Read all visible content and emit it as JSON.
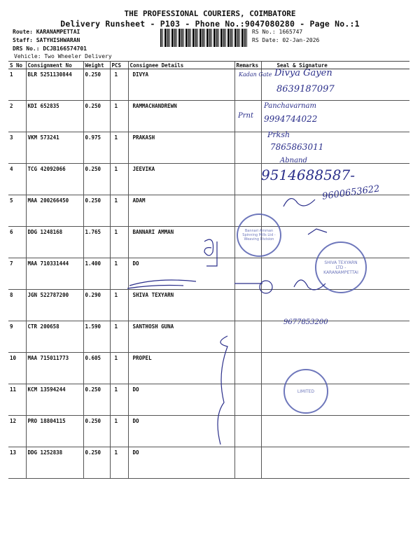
{
  "header": {
    "company": "THE PROFESSIONAL COURIERS, COIMBATORE",
    "subtitle": "Delivery Runsheet - P103 - Phone No.:9047080280 - Page No.:1",
    "route": "Route: KARANAMPETTAI",
    "staff": "Staff: SATYHISHWARAN",
    "drs_no": "DRS No.: DCJB166574701",
    "vehicle": "Vehicle: Two Wheeler Delivery",
    "rs_no": "RS No.: 1665747",
    "rs_date": "RS Date: 02-Jan-2026"
  },
  "table": {
    "columns": [
      "S No",
      "Consignment No",
      "Weight",
      "PCS",
      "Consignee Details",
      "Remarks",
      "Seal & Signature"
    ],
    "rows": [
      {
        "sno": "1",
        "cn": "BLR 5251130844",
        "weight": "0.250",
        "pcs": "1",
        "consignee": "DIVYA"
      },
      {
        "sno": "2",
        "cn": "KDI 652835",
        "weight": "0.250",
        "pcs": "1",
        "consignee": "RAMMACHANDREWN"
      },
      {
        "sno": "3",
        "cn": "VKM 573241",
        "weight": "0.975",
        "pcs": "1",
        "consignee": "PRAKASH"
      },
      {
        "sno": "4",
        "cn": "TCG 42092066",
        "weight": "0.250",
        "pcs": "1",
        "consignee": "JEEVIKA"
      },
      {
        "sno": "5",
        "cn": "MAA 200266450",
        "weight": "0.250",
        "pcs": "1",
        "consignee": "ADAM"
      },
      {
        "sno": "6",
        "cn": "DDG 1248168",
        "weight": "1.765",
        "pcs": "1",
        "consignee": "BANNARI AMMAN"
      },
      {
        "sno": "7",
        "cn": "MAA 710331444",
        "weight": "1.400",
        "pcs": "1",
        "consignee": "DO"
      },
      {
        "sno": "8",
        "cn": "JGN 522787200",
        "weight": "0.290",
        "pcs": "1",
        "consignee": "SHIVA TEXYARN"
      },
      {
        "sno": "9",
        "cn": "CTR 200658",
        "weight": "1.590",
        "pcs": "1",
        "consignee": "SANTHOSH GUNA"
      },
      {
        "sno": "10",
        "cn": "MAA 715011773",
        "weight": "0.605",
        "pcs": "1",
        "consignee": "PROPEL"
      },
      {
        "sno": "11",
        "cn": "KCM 13594244",
        "weight": "0.250",
        "pcs": "1",
        "consignee": "DO"
      },
      {
        "sno": "12",
        "cn": "PRO 18804115",
        "weight": "0.250",
        "pcs": "1",
        "consignee": "DO"
      },
      {
        "sno": "13",
        "cn": "DDG 1252838",
        "weight": "0.250",
        "pcs": "1",
        "consignee": "DO"
      }
    ]
  },
  "handwriting": {
    "r1_remark": "Kadan Gate",
    "r1_sig": "Divya Gayen",
    "r1_phone": "8639187097",
    "r2_remark": "Prnt",
    "r2_sig": "Panchavarnam",
    "r2_phone": "9994744022",
    "r3_sig": "Prksh",
    "r3_phone": "7865863011",
    "r4_sig": "Abnand",
    "r4_phone": "9514688587-",
    "r5_phone": "9600653622",
    "r9_phone": "9677853200"
  },
  "stamps": {
    "bannari": "Bannari Amman Spinning Mills Ltd - Weaving Division",
    "shiva": "SHIVA TEXYARN LTD - KARANAMPETTAI",
    "propel": "LIMITED"
  },
  "colors": {
    "ink": "#2a2e8a",
    "stamp": "#5560b0"
  }
}
